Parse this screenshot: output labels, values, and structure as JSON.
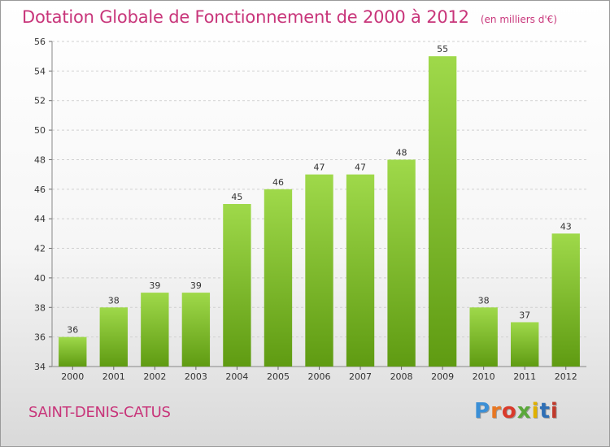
{
  "header": {
    "title": "Dotation Globale de Fonctionnement de 2000 à 2012",
    "subtitle": "(en milliers d'€)"
  },
  "footer": {
    "commune": "SAINT-DENIS-CATUS",
    "logo_text": "Proxiti",
    "logo_colors": [
      "#3b8fd6",
      "#e87722",
      "#d93a2b",
      "#5aa83a",
      "#e0b100",
      "#2f6fb5",
      "#c0392b"
    ]
  },
  "colors": {
    "title": "#c8357a",
    "bar_top": "#9fd94a",
    "bar_bottom": "#5f9b12",
    "grid": "#d0d0d0"
  },
  "chart_data": {
    "type": "bar",
    "title": "Dotation Globale de Fonctionnement de 2000 à 2012",
    "subtitle": "(en milliers d'€)",
    "categories": [
      "2000",
      "2001",
      "2002",
      "2003",
      "2004",
      "2005",
      "2006",
      "2007",
      "2008",
      "2009",
      "2010",
      "2011",
      "2012"
    ],
    "values": [
      36,
      38,
      39,
      39,
      45,
      46,
      47,
      47,
      48,
      55,
      38,
      37,
      43
    ],
    "ylim": [
      34,
      56
    ],
    "yticks": [
      34,
      36,
      38,
      40,
      42,
      44,
      46,
      48,
      50,
      52,
      54,
      56
    ],
    "grid": "horizontal",
    "data_labels": true
  }
}
